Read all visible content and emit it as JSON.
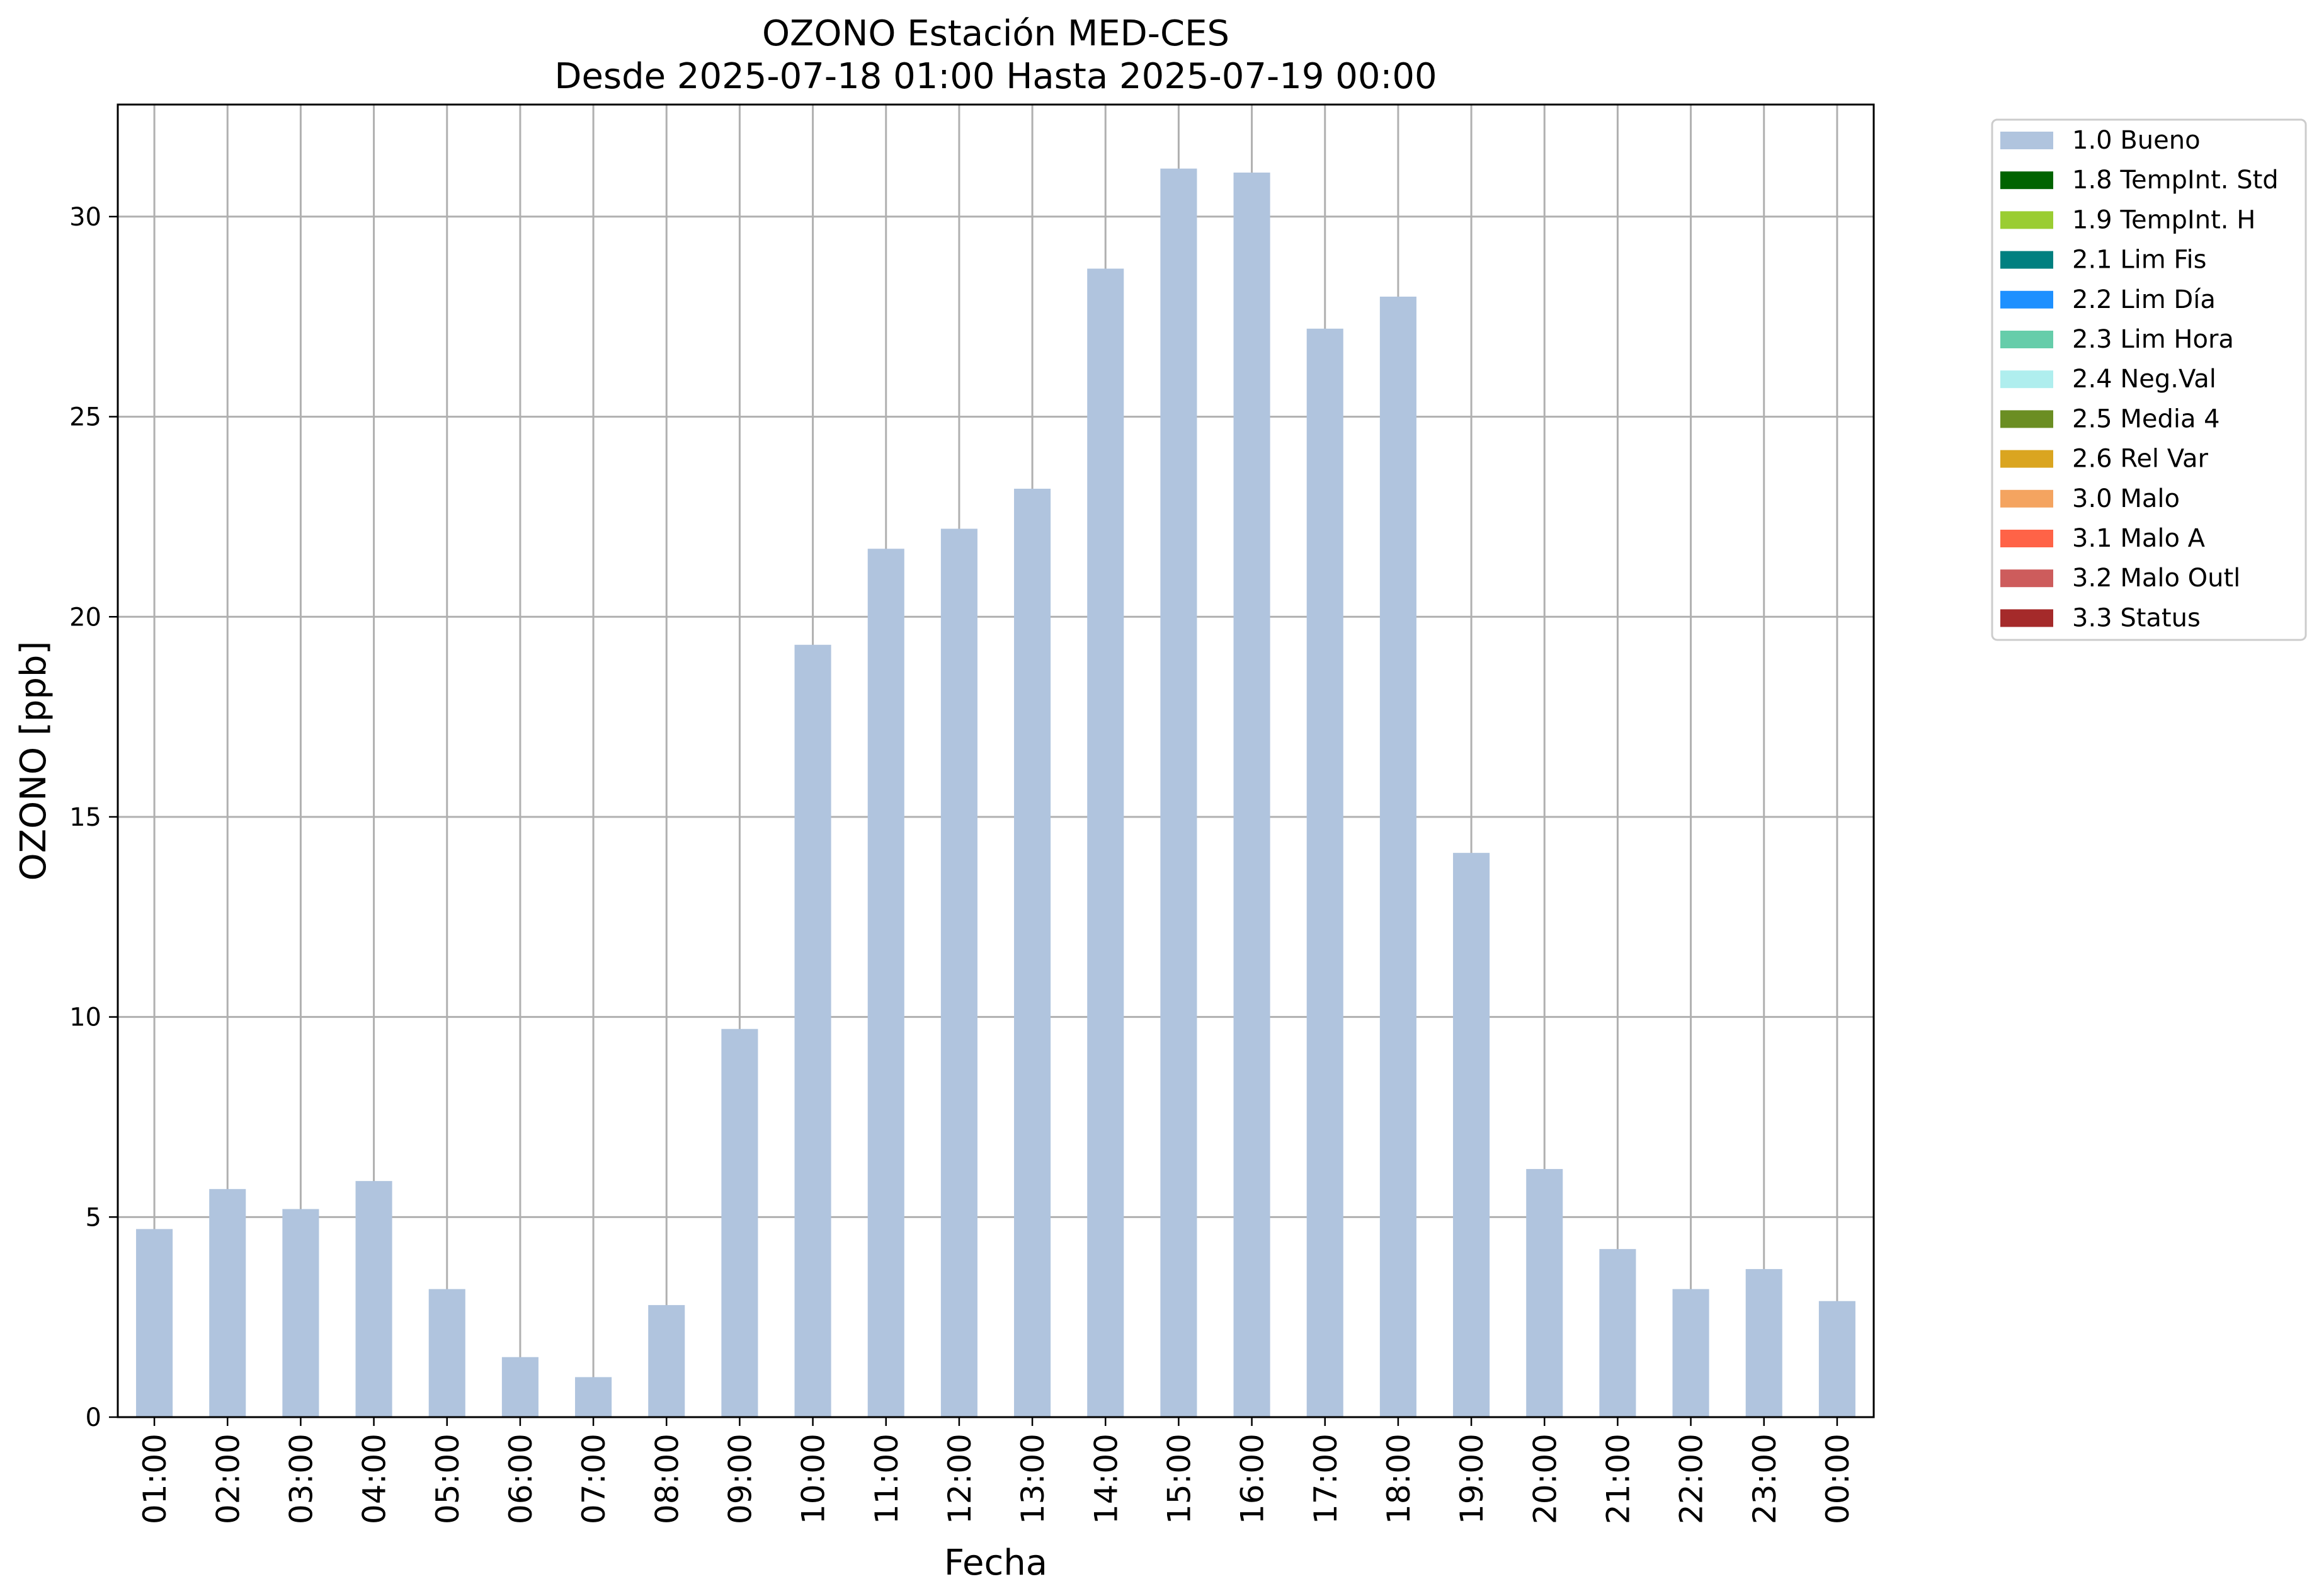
{
  "chart_data": {
    "type": "bar",
    "title": "OZONO Estación MED-CES",
    "subtitle": "Desde 2025-07-18 01:00 Hasta 2025-07-19 00:00",
    "xlabel": "Fecha",
    "ylabel": "OZONO [ppb]",
    "ylim": [
      0,
      32.8
    ],
    "yticks": [
      0,
      5,
      10,
      15,
      20,
      25,
      30
    ],
    "grid": true,
    "legend_position": "outside-right-top",
    "categories": [
      "01:00",
      "02:00",
      "03:00",
      "04:00",
      "05:00",
      "06:00",
      "07:00",
      "08:00",
      "09:00",
      "10:00",
      "11:00",
      "12:00",
      "13:00",
      "14:00",
      "15:00",
      "16:00",
      "17:00",
      "18:00",
      "19:00",
      "20:00",
      "21:00",
      "22:00",
      "23:00",
      "00:00"
    ],
    "series": [
      {
        "name": "1.0 Bueno",
        "color": "#b0c4de",
        "values": [
          4.7,
          5.7,
          5.2,
          5.9,
          3.2,
          1.5,
          1.0,
          2.8,
          9.7,
          19.3,
          21.7,
          22.2,
          23.2,
          28.7,
          31.2,
          31.1,
          27.2,
          28.0,
          14.1,
          6.2,
          4.2,
          3.2,
          3.7,
          2.9
        ]
      }
    ],
    "legend": [
      {
        "label": "1.0 Bueno",
        "color": "#b0c4de"
      },
      {
        "label": "1.8 TempInt. Std",
        "color": "#006400"
      },
      {
        "label": "1.9 TempInt. H",
        "color": "#9acd32"
      },
      {
        "label": "2.1 Lim Fis",
        "color": "#008080"
      },
      {
        "label": "2.2 Lim Día",
        "color": "#1e90ff"
      },
      {
        "label": "2.3 Lim Hora",
        "color": "#66cdaa"
      },
      {
        "label": "2.4 Neg.Val",
        "color": "#afeeee"
      },
      {
        "label": "2.5 Media 4",
        "color": "#6b8e23"
      },
      {
        "label": "2.6 Rel Var",
        "color": "#daa520"
      },
      {
        "label": "3.0 Malo",
        "color": "#f4a460"
      },
      {
        "label": "3.1 Malo A",
        "color": "#ff6347"
      },
      {
        "label": "3.2 Malo Outl",
        "color": "#cd5c5c"
      },
      {
        "label": "3.3 Status",
        "color": "#a52a2a"
      }
    ]
  }
}
